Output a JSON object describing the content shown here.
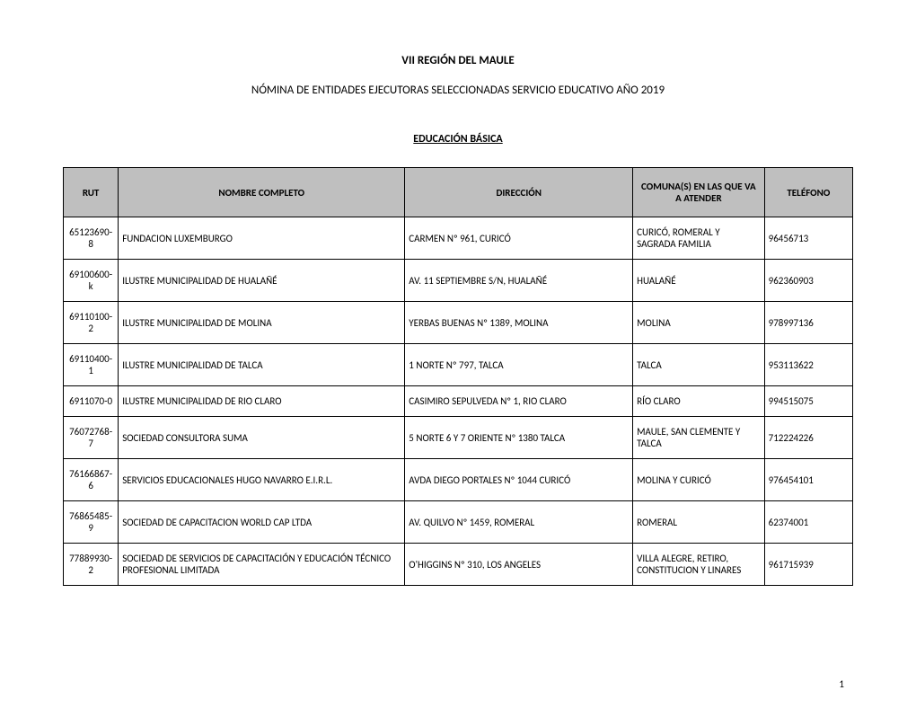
{
  "document": {
    "title": "VII REGIÓN DEL MAULE",
    "subtitle": "NÓMINA DE ENTIDADES EJECUTORAS SELECCIONADAS SERVICIO EDUCATIVO AÑO 2019",
    "section_title": "EDUCACIÓN BÁSICA",
    "page_number": "1"
  },
  "table": {
    "columns": {
      "rut": "RUT",
      "nombre": "NOMBRE COMPLETO",
      "direccion": "DIRECCIÓN",
      "comuna": "COMUNA(S) EN LAS QUE VA A ATENDER",
      "telefono": "TELÉFONO"
    },
    "column_widths": {
      "rut": 61,
      "nombre": 318,
      "direccion": 253,
      "comuna": 146,
      "telefono": 98
    },
    "header_bg_color": "#bfbfbf",
    "border_color": "#000000",
    "font_size": 11,
    "rows": [
      {
        "rut": "65123690-8",
        "nombre": "FUNDACION LUXEMBURGO",
        "direccion": "CARMEN Nº 961, CURICÓ",
        "comuna": "CURICÓ, ROMERAL Y SAGRADA FAMILIA",
        "telefono": "96456713"
      },
      {
        "rut": "69100600-k",
        "nombre": "ILUSTRE MUNICIPALIDAD DE HUALAÑÉ",
        "direccion": "AV. 11 SEPTIEMBRE S/N, HUALAÑÉ",
        "comuna": "HUALAÑÉ",
        "telefono": "962360903"
      },
      {
        "rut": "69110100-2",
        "nombre": "ILUSTRE MUNICIPALIDAD DE MOLINA",
        "direccion": "YERBAS BUENAS Nº 1389, MOLINA",
        "comuna": "MOLINA",
        "telefono": "978997136"
      },
      {
        "rut": "69110400-1",
        "nombre": "ILUSTRE MUNICIPALIDAD DE TALCA",
        "direccion": "1 NORTE Nº 797, TALCA",
        "comuna": "TALCA",
        "telefono": "953113622"
      },
      {
        "rut": "6911070-0",
        "nombre": "ILUSTRE MUNICIPALIDAD DE RIO CLARO",
        "direccion": "CASIMIRO SEPULVEDA Nº 1, RIO CLARO",
        "comuna": "RÍO CLARO",
        "telefono": "994515075"
      },
      {
        "rut": "76072768-7",
        "nombre": "SOCIEDAD CONSULTORA SUMA",
        "direccion": "5 NORTE 6 Y 7 ORIENTE Nº 1380 TALCA",
        "comuna": "MAULE, SAN CLEMENTE Y TALCA",
        "telefono": "712224226"
      },
      {
        "rut": "76166867-6",
        "nombre": "SERVICIOS EDUCACIONALES HUGO NAVARRO E.I.R.L.",
        "direccion": "AVDA  DIEGO PORTALES Nº 1044 CURICÓ",
        "comuna": "MOLINA Y CURICÓ",
        "telefono": "976454101"
      },
      {
        "rut": "76865485-9",
        "nombre": "SOCIEDAD DE CAPACITACION WORLD CAP LTDA",
        "direccion": "AV. QUILVO Nº 1459, ROMERAL",
        "comuna": "ROMERAL",
        "telefono": "62374001"
      },
      {
        "rut": "77889930-2",
        "nombre": "SOCIEDAD DE SERVICIOS DE CAPACITACIÓN Y EDUCACIÓN TÉCNICO PROFESIONAL LIMITADA",
        "direccion": "O'HIGGINS Nº 310, LOS ANGELES",
        "comuna": "VILLA ALEGRE, RETIRO, CONSTITUCION Y LINARES",
        "telefono": "961715939"
      }
    ]
  }
}
